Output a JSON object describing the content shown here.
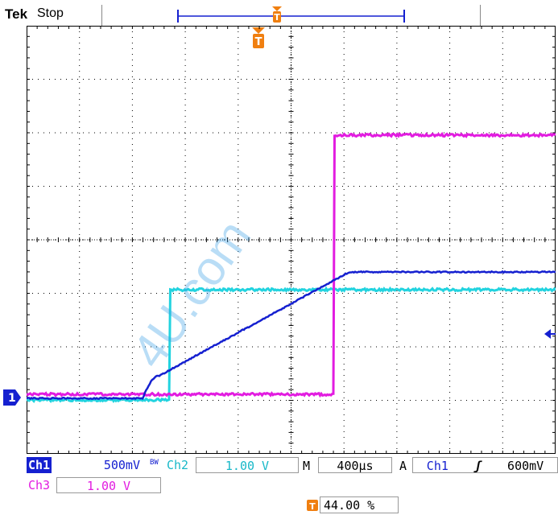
{
  "header": {
    "brand": "Tek",
    "acquisition_state": "Stop"
  },
  "colors": {
    "ch1": "#1520d0",
    "ch2": "#22d3df",
    "ch3": "#e21ce0",
    "trigger": "#f07f10",
    "grid": "#000000"
  },
  "waveforms": {
    "ch1_start": 0.22,
    "ch1_ramp_end": 0.61,
    "ch2_step": 0.27,
    "ch3_step": 0.58
  },
  "trigger": {
    "marker_label": "T",
    "position_percent": "44.00 %"
  },
  "readouts": {
    "ch1_label": "Ch1",
    "ch1_scale": "500mV",
    "bw_label": "BW",
    "ch2_label": "Ch2",
    "ch2_scale": "1.00 V",
    "ch3_label": "Ch3",
    "ch3_scale": "1.00 V",
    "timebase_label": "M",
    "timebase": "400µs",
    "trigger_mode": "A",
    "trigger_source": "Ch1",
    "trigger_slope": "ʃ",
    "trigger_level": "600mV"
  },
  "channel_marker": "1",
  "watermark": "4U.com"
}
